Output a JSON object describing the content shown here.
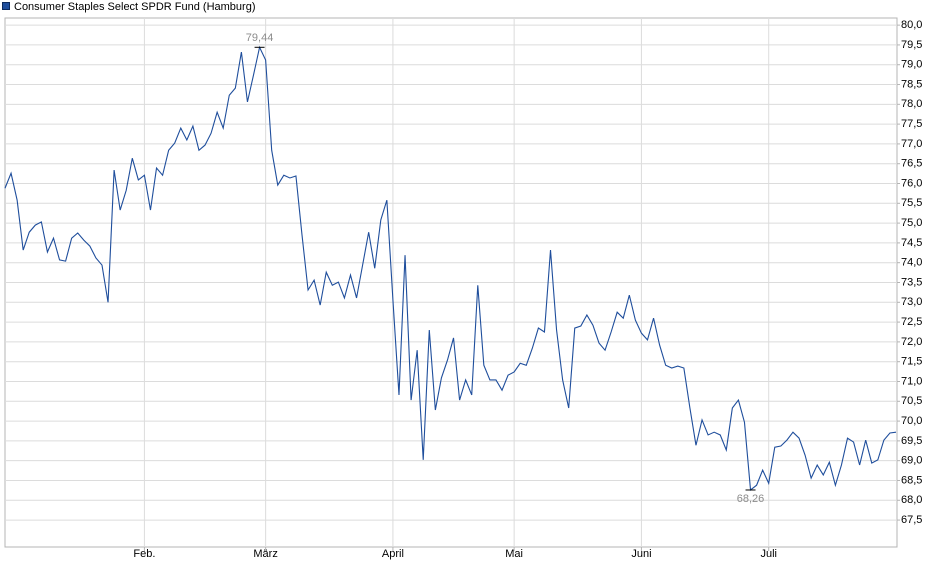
{
  "chart_data": {
    "type": "line",
    "series": [
      {
        "name": "Consumer Staples Select SPDR Fund (Hamburg)",
        "color": "#1f4e9c",
        "values": [
          75.88,
          76.26,
          75.58,
          74.32,
          74.77,
          74.95,
          75.03,
          74.27,
          74.62,
          74.07,
          74.04,
          74.62,
          74.75,
          74.57,
          74.42,
          74.12,
          73.94,
          73.0,
          76.34,
          75.33,
          75.83,
          76.64,
          76.09,
          76.21,
          75.33,
          76.39,
          76.21,
          76.84,
          77.02,
          77.4,
          77.1,
          77.45,
          76.84,
          76.97,
          77.27,
          77.8,
          77.4,
          78.23,
          78.41,
          79.32,
          78.06,
          78.74,
          79.44,
          79.12,
          76.84,
          75.96,
          76.21,
          76.14,
          76.19,
          74.7,
          73.31,
          73.56,
          72.93,
          73.76,
          73.43,
          73.51,
          73.11,
          73.69,
          73.11,
          73.94,
          74.77,
          73.86,
          75.08,
          75.58,
          73.06,
          70.66,
          74.19,
          70.53,
          71.79,
          69.02,
          72.3,
          70.28,
          71.09,
          71.54,
          72.1,
          70.53,
          71.04,
          70.66,
          73.43,
          71.41,
          71.04,
          71.04,
          70.78,
          71.16,
          71.24,
          71.46,
          71.41,
          71.84,
          72.35,
          72.25,
          74.32,
          72.3,
          71.04,
          70.33,
          72.35,
          72.4,
          72.68,
          72.42,
          71.97,
          71.79,
          72.25,
          72.75,
          72.6,
          73.18,
          72.55,
          72.22,
          72.05,
          72.6,
          71.92,
          71.41,
          71.34,
          71.39,
          71.34,
          70.33,
          69.39,
          70.03,
          69.65,
          69.72,
          69.65,
          69.27,
          70.33,
          70.53,
          69.97,
          68.26,
          68.38,
          68.76,
          68.43,
          69.34,
          69.37,
          69.52,
          69.72,
          69.57,
          69.14,
          68.56,
          68.89,
          68.64,
          68.96,
          68.38,
          68.89,
          69.57,
          69.47,
          68.89,
          69.52,
          68.94,
          69.02,
          69.52,
          69.7,
          69.72
        ]
      }
    ],
    "categories": [
      null,
      null,
      null,
      null,
      null,
      null,
      null,
      null,
      null,
      null,
      null,
      null,
      null,
      null,
      null,
      null,
      null,
      null,
      null,
      null,
      null,
      null,
      null,
      "Feb.",
      null,
      null,
      null,
      null,
      null,
      null,
      null,
      null,
      null,
      null,
      null,
      null,
      null,
      null,
      null,
      null,
      null,
      null,
      null,
      "März",
      null,
      null,
      null,
      null,
      null,
      null,
      null,
      null,
      null,
      null,
      null,
      null,
      null,
      null,
      null,
      null,
      null,
      null,
      null,
      null,
      "April",
      null,
      null,
      null,
      null,
      null,
      null,
      null,
      null,
      null,
      null,
      null,
      null,
      null,
      null,
      null,
      null,
      null,
      null,
      null,
      "Mai",
      null,
      null,
      null,
      null,
      null,
      null,
      null,
      null,
      null,
      null,
      null,
      null,
      null,
      null,
      null,
      null,
      null,
      null,
      null,
      null,
      "Juni",
      null,
      null,
      null,
      null,
      null,
      null,
      null,
      null,
      null,
      null,
      null,
      null,
      null,
      null,
      null,
      null,
      null,
      null,
      null,
      null,
      "Juli",
      null,
      null,
      null,
      null,
      null,
      null,
      null,
      null,
      null,
      null,
      null,
      null,
      null,
      null,
      null,
      null,
      null,
      null,
      null,
      null,
      null
    ],
    "annotations": [
      {
        "text": "79,44"
      },
      {
        "text": "68,26"
      }
    ],
    "ylim": [
      66.82,
      80.18
    ],
    "yticks": [
      {
        "value": 67.5,
        "label": "67,5"
      },
      {
        "value": 68,
        "label": "68,0"
      },
      {
        "value": 68.5,
        "label": "68,5"
      },
      {
        "value": 69,
        "label": "69,0"
      },
      {
        "value": 69.5,
        "label": "69,5"
      },
      {
        "value": 70,
        "label": "70,0"
      },
      {
        "value": 70.5,
        "label": "70,5"
      },
      {
        "value": 71,
        "label": "71,0"
      },
      {
        "value": 71.5,
        "label": "71,5"
      },
      {
        "value": 72,
        "label": "72,0"
      },
      {
        "value": 72.5,
        "label": "72,5"
      },
      {
        "value": 73,
        "label": "73,0"
      },
      {
        "value": 73.5,
        "label": "73,5"
      },
      {
        "value": 74,
        "label": "74,0"
      },
      {
        "value": 74.5,
        "label": "74,5"
      },
      {
        "value": 75,
        "label": "75,0"
      },
      {
        "value": 75.5,
        "label": "75,5"
      },
      {
        "value": 76,
        "label": "76,0"
      },
      {
        "value": 76.5,
        "label": "76,5"
      },
      {
        "value": 77,
        "label": "77,0"
      },
      {
        "value": 77.5,
        "label": "77,5"
      },
      {
        "value": 78,
        "label": "78,0"
      },
      {
        "value": 78.5,
        "label": "78,5"
      },
      {
        "value": 79,
        "label": "79,0"
      },
      {
        "value": 79.5,
        "label": "79,5"
      },
      {
        "value": 80,
        "label": "80,0"
      }
    ],
    "grid": true
  }
}
